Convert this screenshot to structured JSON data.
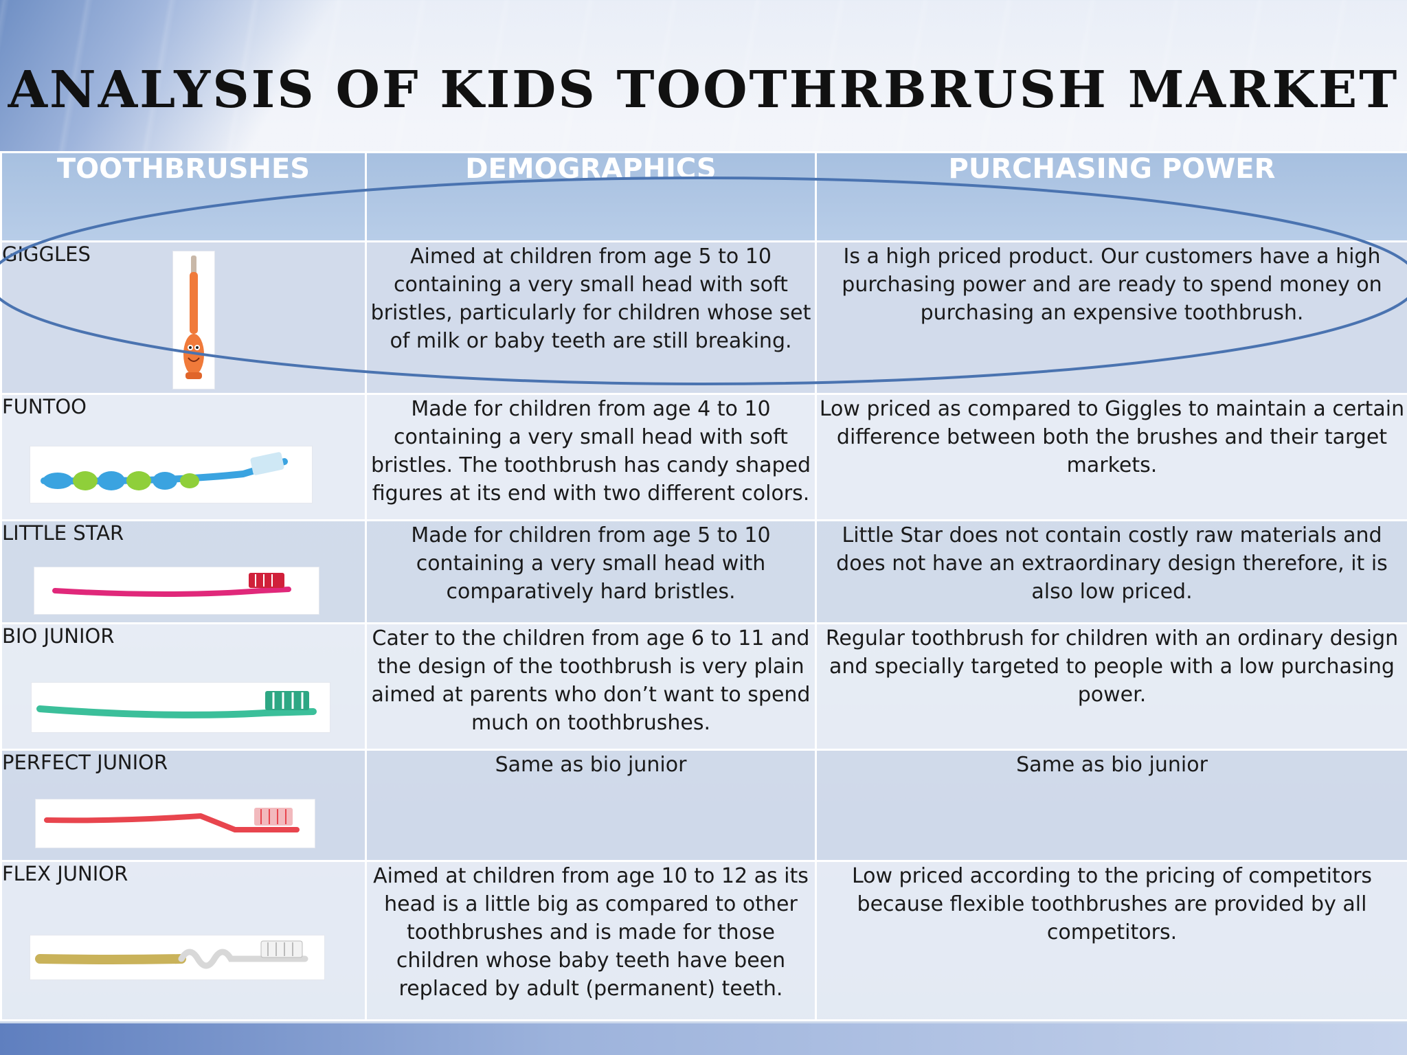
{
  "title": "ANALYSIS OF KIDS TOOTHRBRUSH MARKET",
  "headers": {
    "toothbrushes": "TOOTHBRUSHES",
    "demographics": "DEMOGRAPHICS",
    "purchasing_power": "PURCHASING POWER"
  },
  "rows": [
    {
      "name": "GIGGLES",
      "demographics": "Aimed at children from age 5 to 10 containing a very small head with soft bristles, particularly for children whose set of milk or baby teeth are still breaking.",
      "purchasing_power": "Is a high priced product. Our customers have a high purchasing power and are ready to spend money on purchasing  an expensive toothbrush.",
      "image_color": "#f07a3a"
    },
    {
      "name": "FUNTOO",
      "demographics": "Made for children from age 4 to 10 containing a very small head with soft bristles. The toothbrush has candy shaped figures at its end with two different colors.",
      "purchasing_power": "Low priced as compared to Giggles to maintain a certain difference between both the brushes and their target markets.",
      "image_color": "#3aa3e0"
    },
    {
      "name": "LITTLE STAR",
      "demographics": "Made for children from age 5 to 10 containing a very small head with comparatively hard bristles.",
      "purchasing_power": "Little Star  does not contain costly raw materials and does not have an extraordinary design therefore, it is also low priced.",
      "image_color": "#e0287a"
    },
    {
      "name": "BIO JUNIOR",
      "demographics": "Cater to the children from age 6 to 11 and the design of the toothbrush is very plain aimed at parents who don’t want to spend much on toothbrushes.",
      "purchasing_power": "Regular toothbrush for children with an ordinary design and specially targeted to people with a low purchasing power.",
      "image_color": "#3bbf9a"
    },
    {
      "name": "PERFECT JUNIOR",
      "demographics": "Same as bio  junior",
      "purchasing_power": "Same as bio junior",
      "image_color": "#e8454e"
    },
    {
      "name": "FLEX JUNIOR",
      "demographics": "Aimed at children from age 10 to 12  as its head is a little big as compared to other toothbrushes and is made for those children whose baby teeth have been replaced by adult (permanent) teeth.",
      "purchasing_power": "Low priced according to the pricing of competitors because flexible toothbrushes are provided by all competitors.",
      "image_color": "#c9b25a"
    }
  ],
  "colors": {
    "header_bg": "#a7c0e0",
    "highlight_ellipse": "#4a73b0"
  }
}
